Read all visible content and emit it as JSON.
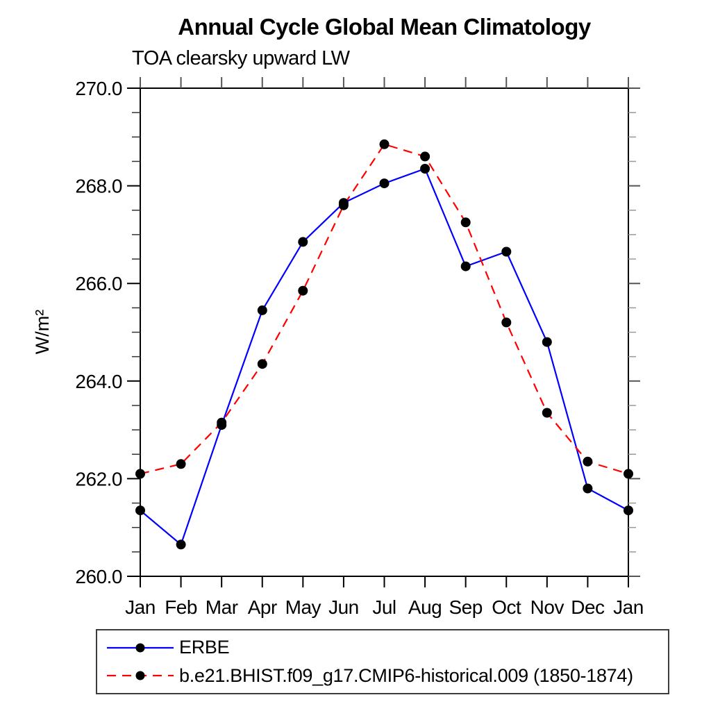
{
  "chart_data": {
    "type": "line",
    "title": "Annual Cycle Global Mean Climatology",
    "subtitle": "TOA clearsky upward LW",
    "ylabel": "W/m²",
    "xlabel": "",
    "categories": [
      "Jan",
      "Feb",
      "Mar",
      "Apr",
      "May",
      "Jun",
      "Jul",
      "Aug",
      "Sep",
      "Oct",
      "Nov",
      "Dec",
      "Jan"
    ],
    "ylim": [
      260.0,
      270.0
    ],
    "y_major_ticks": [
      {
        "value": 270.0,
        "label": "270.0"
      },
      {
        "value": 268.0,
        "label": "268.0"
      },
      {
        "value": 266.0,
        "label": "266.0"
      },
      {
        "value": 264.0,
        "label": "264.0"
      },
      {
        "value": 262.0,
        "label": "262.0"
      },
      {
        "value": 260.0,
        "label": "260.0"
      }
    ],
    "y_minor_step": 0.5,
    "grid": false,
    "legend_position": "bottom",
    "marker": {
      "shape": "circle",
      "color": "#000000"
    },
    "axis_color": "#000000",
    "series": [
      {
        "name": "ERBE",
        "color": "#0000ff",
        "line_style": "solid",
        "values": [
          261.35,
          260.65,
          263.1,
          265.45,
          266.85,
          267.65,
          268.05,
          268.35,
          266.35,
          266.65,
          264.8,
          261.8,
          261.35
        ]
      },
      {
        "name": "b.e21.BHIST.f09_g17.CMIP6-historical.009 (1850-1874)",
        "color": "#ff0000",
        "line_style": "dashed",
        "values": [
          262.1,
          262.3,
          263.15,
          264.35,
          265.85,
          267.6,
          268.85,
          268.6,
          267.25,
          265.2,
          263.35,
          262.35,
          262.1
        ]
      }
    ]
  }
}
